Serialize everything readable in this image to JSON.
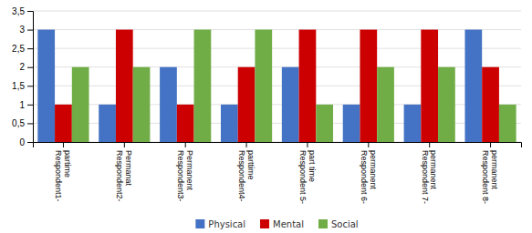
{
  "chart_data": {
    "type": "bar",
    "categories": [
      "Respondent1-\npartime",
      "Respondent2-\nPermanat",
      "Respondent3-\nPermanent",
      "Respondent4-\nparttime",
      "Respondent 5-\npart time",
      "Respondent 6-\npermanent",
      "Respondent 7-\npermanent",
      "Respondent 8-\npermanent"
    ],
    "series": [
      {
        "name": "Physical",
        "color": "#4472C4",
        "values": [
          3,
          1,
          2,
          1,
          2,
          1,
          1,
          3
        ]
      },
      {
        "name": "Mental",
        "color": "#CC0000",
        "values": [
          1,
          3,
          1,
          2,
          3,
          3,
          3,
          2
        ]
      },
      {
        "name": "Social",
        "color": "#70AD47",
        "values": [
          2,
          2,
          3,
          3,
          1,
          2,
          2,
          1
        ]
      }
    ],
    "ylim": [
      0,
      3.5
    ],
    "yticks": [
      0,
      {
        "value": 0.5,
        "label": "0,5"
      },
      1,
      {
        "value": 1.5,
        "label": "1,5"
      },
      2,
      {
        "value": 2.5,
        "label": "2,5"
      },
      3,
      {
        "value": 3.5,
        "label": "3,5"
      }
    ],
    "grid": true,
    "legend": "bottom"
  }
}
